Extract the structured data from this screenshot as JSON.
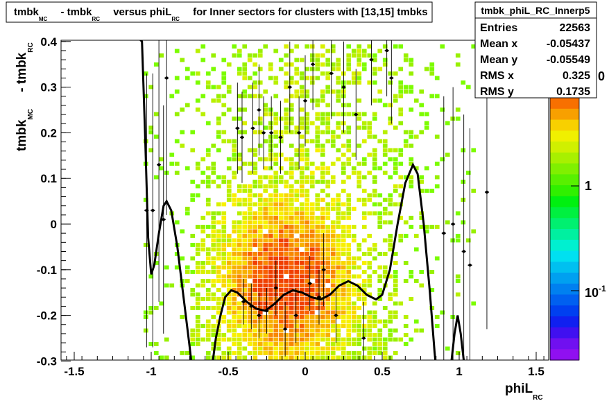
{
  "chart_data": {
    "type": "heatmap",
    "title": {
      "parts": [
        {
          "t": "tmbk",
          "sub": "MC"
        },
        {
          "t": " - tmbk",
          "sub": "RC"
        },
        {
          "t": " versus phiL",
          "sub": "RC"
        },
        {
          "t": " for Inner sectors for clusters with [13,15] tmbks",
          "sub": ""
        }
      ]
    },
    "xlabel": {
      "t": "phiL",
      "sub": "RC"
    },
    "ylabel": {
      "parts": [
        {
          "t": "tmbk",
          "sub": "MC"
        },
        {
          "t": " - tmbk",
          "sub": "RC"
        }
      ]
    },
    "xlim": [
      -1.6,
      1.6
    ],
    "ylim": [
      -0.3,
      0.41
    ],
    "x_ticks": [
      -1.5,
      -1,
      -0.5,
      0,
      0.5,
      1,
      1.5
    ],
    "x_tick_labels": [
      "-1.5",
      "-1",
      "-0.5",
      "0",
      "0.5",
      "1",
      "1.5"
    ],
    "y_ticks": [
      -0.3,
      -0.2,
      -0.1,
      0,
      0.1,
      0.2,
      0.3,
      0.4
    ],
    "y_tick_labels": [
      "-0.3",
      "-0.2",
      "-0.1",
      "0",
      "0.1",
      "0.2",
      "0.3",
      "0.4"
    ],
    "colorbar": {
      "scale": "log",
      "labels": [
        "1",
        "10^-1"
      ],
      "partial_top_label": "0"
    },
    "stats": {
      "name": "tmbk_phiL_RC_Innerp5",
      "rows": [
        {
          "label": "Entries",
          "value": "22563"
        },
        {
          "label": "Mean x",
          "value": "-0.05437"
        },
        {
          "label": "Mean y",
          "value": "-0.05549"
        },
        {
          "label": "RMS x",
          "value": "0.325"
        },
        {
          "label": "RMS y",
          "value": "0.1735"
        }
      ]
    },
    "density": {
      "x_range": [
        -1.05,
        1.1
      ],
      "core_center": [
        -0.15,
        -0.12
      ],
      "core_sigma": [
        0.28,
        0.11
      ]
    },
    "profile_points": [
      {
        "x": -1.03,
        "y": 0.03,
        "err": 0.3
      },
      {
        "x": -0.99,
        "y": 0.03,
        "err": 0.3
      },
      {
        "x": -0.95,
        "y": 0.13,
        "err": 0.3
      },
      {
        "x": -0.92,
        "y": 0.01,
        "err": 0.25
      },
      {
        "x": -0.9,
        "y": 0.32,
        "err": 0.3
      },
      {
        "x": -0.44,
        "y": 0.21,
        "err": 0.1
      },
      {
        "x": -0.41,
        "y": 0.19,
        "err": 0.1
      },
      {
        "x": -0.4,
        "y": -0.17,
        "err": 0.05
      },
      {
        "x": -0.35,
        "y": -0.18,
        "err": 0.05
      },
      {
        "x": -0.34,
        "y": 0.21,
        "err": 0.1
      },
      {
        "x": -0.3,
        "y": 0.25,
        "err": 0.1
      },
      {
        "x": -0.3,
        "y": -0.2,
        "err": 0.05
      },
      {
        "x": -0.27,
        "y": 0.2,
        "err": 0.08
      },
      {
        "x": -0.25,
        "y": -0.19,
        "err": 0.05
      },
      {
        "x": -0.22,
        "y": 0.2,
        "err": 0.08
      },
      {
        "x": -0.19,
        "y": -0.14,
        "err": 0.06
      },
      {
        "x": -0.16,
        "y": 0.19,
        "err": 0.08
      },
      {
        "x": -0.13,
        "y": -0.23,
        "err": 0.06
      },
      {
        "x": -0.1,
        "y": 0.3,
        "err": 0.1
      },
      {
        "x": -0.06,
        "y": -0.2,
        "err": 0.06
      },
      {
        "x": -0.04,
        "y": 0.2,
        "err": 0.08
      },
      {
        "x": 0.0,
        "y": 0.27,
        "err": 0.1
      },
      {
        "x": 0.03,
        "y": -0.13,
        "err": 0.06
      },
      {
        "x": 0.05,
        "y": 0.35,
        "err": 0.1
      },
      {
        "x": 0.09,
        "y": -0.16,
        "err": 0.06
      },
      {
        "x": 0.12,
        "y": -0.1,
        "err": 0.08
      },
      {
        "x": 0.17,
        "y": 0.33,
        "err": 0.1
      },
      {
        "x": 0.2,
        "y": -0.2,
        "err": 0.06
      },
      {
        "x": 0.25,
        "y": 0.3,
        "err": 0.1
      },
      {
        "x": 0.33,
        "y": 0.24,
        "err": 0.1
      },
      {
        "x": 0.38,
        "y": -0.25,
        "err": 0.08
      },
      {
        "x": 0.43,
        "y": 0.36,
        "err": 0.1
      },
      {
        "x": 0.53,
        "y": 0.38,
        "err": 0.1
      },
      {
        "x": 0.56,
        "y": 0.32,
        "err": 0.1
      },
      {
        "x": 0.9,
        "y": -0.02,
        "err": 0.3
      },
      {
        "x": 0.96,
        "y": 0.0,
        "err": 0.3
      },
      {
        "x": 1.03,
        "y": -0.06,
        "err": 0.3
      },
      {
        "x": 1.07,
        "y": -0.09,
        "err": 0.3
      },
      {
        "x": 1.18,
        "y": 0.07,
        "err": 0.3
      }
    ],
    "fit_curve": [
      [
        -1.09,
        0.41
      ],
      [
        -1.06,
        0.4
      ],
      [
        -1.04,
        0.2
      ],
      [
        -1.02,
        -0.03
      ],
      [
        -1.0,
        -0.11
      ],
      [
        -0.98,
        -0.09
      ],
      [
        -0.95,
        -0.02
      ],
      [
        -0.92,
        0.04
      ],
      [
        -0.9,
        0.05
      ],
      [
        -0.87,
        0.03
      ],
      [
        -0.83,
        -0.05
      ],
      [
        -0.79,
        -0.16
      ],
      [
        -0.75,
        -0.27
      ],
      [
        -0.73,
        -0.33
      ],
      [
        -0.63,
        -0.33
      ],
      [
        -0.6,
        -0.3
      ],
      [
        -0.58,
        -0.25
      ],
      [
        -0.55,
        -0.2
      ],
      [
        -0.52,
        -0.16
      ],
      [
        -0.48,
        -0.145
      ],
      [
        -0.44,
        -0.15
      ],
      [
        -0.38,
        -0.17
      ],
      [
        -0.32,
        -0.185
      ],
      [
        -0.26,
        -0.19
      ],
      [
        -0.2,
        -0.175
      ],
      [
        -0.14,
        -0.155
      ],
      [
        -0.08,
        -0.145
      ],
      [
        -0.02,
        -0.15
      ],
      [
        0.04,
        -0.16
      ],
      [
        0.1,
        -0.165
      ],
      [
        0.16,
        -0.155
      ],
      [
        0.22,
        -0.135
      ],
      [
        0.28,
        -0.125
      ],
      [
        0.34,
        -0.135
      ],
      [
        0.4,
        -0.155
      ],
      [
        0.46,
        -0.165
      ],
      [
        0.5,
        -0.155
      ],
      [
        0.55,
        -0.1
      ],
      [
        0.6,
        0.0
      ],
      [
        0.65,
        0.09
      ],
      [
        0.7,
        0.13
      ],
      [
        0.73,
        0.11
      ],
      [
        0.77,
        0.0
      ],
      [
        0.81,
        -0.15
      ],
      [
        0.84,
        -0.28
      ],
      [
        0.86,
        -0.35
      ],
      [
        0.93,
        -0.35
      ],
      [
        0.95,
        -0.3
      ],
      [
        0.97,
        -0.24
      ],
      [
        0.99,
        -0.2
      ],
      [
        1.01,
        -0.24
      ],
      [
        1.03,
        -0.3
      ],
      [
        1.05,
        -0.32
      ]
    ]
  }
}
